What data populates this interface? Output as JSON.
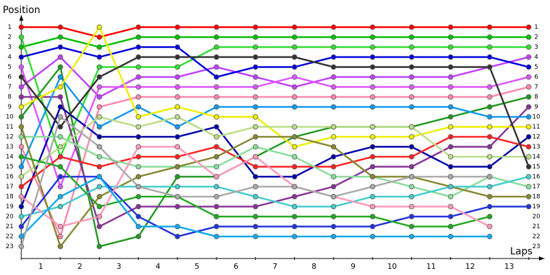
{
  "chart_data": {
    "type": "line",
    "y_title": "Position",
    "x_title": "Laps",
    "x": [
      0,
      1,
      2,
      3,
      4,
      5,
      6,
      7,
      8,
      9,
      10,
      11,
      12,
      13
    ],
    "xlim": [
      0,
      13
    ],
    "xticks": [
      {
        "value": 0.5,
        "label": "1"
      },
      {
        "value": 1.5,
        "label": "2"
      },
      {
        "value": 2.5,
        "label": "3"
      },
      {
        "value": 3.5,
        "label": "4"
      },
      {
        "value": 4.5,
        "label": "5"
      },
      {
        "value": 5.5,
        "label": "6"
      },
      {
        "value": 6.5,
        "label": "7"
      },
      {
        "value": 7.5,
        "label": "8"
      },
      {
        "value": 8.5,
        "label": "9"
      },
      {
        "value": 9.5,
        "label": "10"
      },
      {
        "value": 10.5,
        "label": "11"
      },
      {
        "value": 11.5,
        "label": "12"
      },
      {
        "value": 12.5,
        "label": "13"
      }
    ],
    "ylim": [
      0,
      24
    ],
    "inverted": true,
    "yticks": [
      1,
      2,
      3,
      4,
      5,
      6,
      7,
      8,
      9,
      10,
      11,
      12,
      13,
      14,
      15,
      16,
      17,
      18,
      19,
      20,
      21,
      22,
      23
    ],
    "series": [
      {
        "color": "#ff0000",
        "values": [
          1,
          1,
          2,
          1,
          1,
          1,
          1,
          1,
          1,
          1,
          1,
          1,
          1,
          1
        ]
      },
      {
        "color": "#00c000",
        "values": [
          3,
          2,
          3,
          2,
          2,
          2,
          2,
          2,
          2,
          2,
          2,
          2,
          2,
          2
        ]
      },
      {
        "color": "#33dd33",
        "values": [
          2,
          14,
          5,
          5,
          5,
          3,
          3,
          3,
          3,
          3,
          3,
          3,
          3,
          3
        ]
      },
      {
        "color": "#c040ff",
        "values": [
          7,
          4,
          8,
          6,
          6,
          5,
          6,
          7,
          6,
          6,
          6,
          6,
          5,
          4
        ]
      },
      {
        "color": "#0000dd",
        "values": [
          4,
          3,
          4,
          3,
          3,
          6,
          5,
          5,
          4,
          4,
          4,
          4,
          4,
          5
        ]
      },
      {
        "color": "#dd55ff",
        "values": [
          5,
          17,
          7,
          7,
          7,
          7,
          7,
          6,
          7,
          7,
          7,
          7,
          7,
          6
        ]
      },
      {
        "color": "#ff88aa",
        "values": [
          13,
          22,
          9,
          8,
          8,
          8,
          8,
          8,
          8,
          8,
          8,
          8,
          8,
          7
        ]
      },
      {
        "color": "#229922",
        "values": [
          10,
          5,
          23,
          22,
          16,
          16,
          14,
          12,
          11,
          11,
          11,
          10,
          9,
          8
        ]
      },
      {
        "color": "#883399",
        "values": [
          8,
          8,
          21,
          19,
          19,
          19,
          19,
          18,
          17,
          15,
          15,
          13,
          13,
          9
        ]
      },
      {
        "color": "#1199ee",
        "values": [
          15,
          6,
          11,
          9,
          11,
          9,
          9,
          9,
          9,
          9,
          9,
          9,
          10,
          10
        ]
      },
      {
        "color": "#eeee00",
        "values": [
          9,
          7,
          1,
          10,
          9,
          10,
          10,
          13,
          12,
          12,
          12,
          11,
          11,
          11
        ]
      },
      {
        "color": "#0000aa",
        "values": [
          19,
          9,
          12,
          12,
          12,
          11,
          16,
          16,
          14,
          13,
          13,
          15,
          15,
          12
        ]
      },
      {
        "color": "#ff2222",
        "values": [
          17,
          14,
          15,
          14,
          14,
          13,
          15,
          15,
          15,
          14,
          14,
          12,
          12,
          13
        ]
      },
      {
        "color": "#bbdd88",
        "values": [
          16,
          13,
          10,
          11,
          10,
          12,
          11,
          11,
          11,
          11,
          11,
          14,
          14,
          14
        ]
      },
      {
        "color": "#333333",
        "values": [
          6,
          11,
          6,
          4,
          4,
          4,
          4,
          4,
          5,
          5,
          5,
          5,
          5,
          15
        ]
      },
      {
        "color": "#88dd99",
        "values": [
          12,
          12,
          14,
          15,
          15,
          15,
          13,
          14,
          16,
          16,
          17,
          18,
          16,
          17
        ]
      },
      {
        "color": "#888833",
        "values": [
          11,
          23,
          18,
          16,
          15,
          14,
          12,
          12,
          13,
          16,
          16,
          17,
          18,
          18
        ]
      },
      {
        "color": "#44cccc",
        "values": [
          20,
          19,
          17,
          17,
          17,
          17,
          18,
          19,
          19,
          18,
          18,
          17,
          17,
          16
        ]
      },
      {
        "color": "#2233dd",
        "values": [
          21,
          16,
          16,
          20,
          22,
          21,
          21,
          21,
          21,
          21,
          20,
          20,
          19,
          19
        ]
      },
      {
        "color": "#22aa22",
        "values": [
          14,
          15,
          19,
          18,
          18,
          20,
          20,
          20,
          20,
          20,
          21,
          21,
          20,
          null
        ]
      },
      {
        "color": "#ff99bb",
        "values": [
          18,
          21,
          20,
          13,
          13,
          16,
          14,
          17,
          18,
          19,
          19,
          19,
          21,
          null
        ]
      },
      {
        "color": "#11aaee",
        "values": [
          22,
          18,
          16,
          21,
          21,
          22,
          22,
          22,
          22,
          22,
          22,
          22,
          22,
          null
        ]
      },
      {
        "color": "#aaaaaa",
        "values": [
          23,
          10,
          13,
          17,
          18,
          18,
          17,
          17,
          18,
          17,
          16,
          16,
          16,
          null
        ]
      }
    ]
  }
}
